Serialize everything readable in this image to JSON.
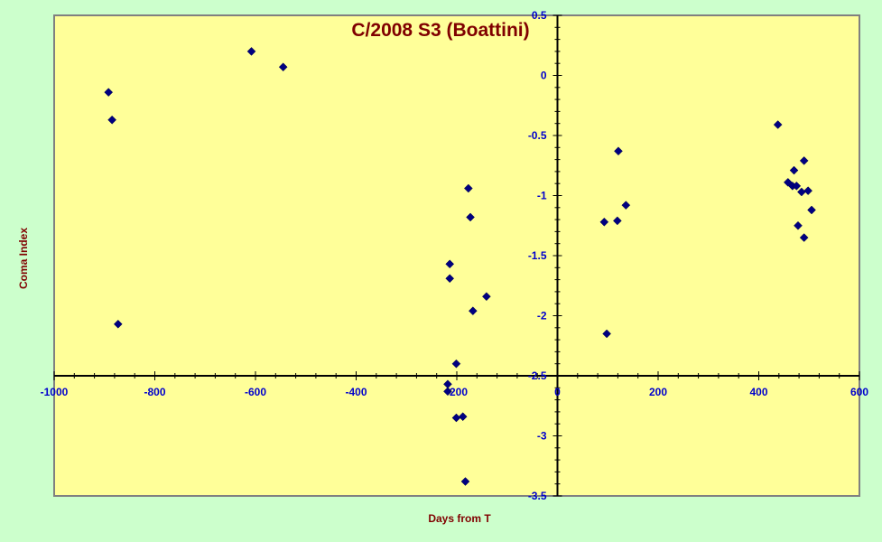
{
  "chart_data": {
    "type": "scatter",
    "title": "C/2008 S3 (Boattini)",
    "xlabel": "Days from T",
    "ylabel": "Coma Index",
    "xlim": [
      -1000,
      600
    ],
    "ylim": [
      -3.5,
      0.5
    ],
    "x_ticks": [
      -1000,
      -800,
      -600,
      -400,
      -200,
      0,
      200,
      400,
      600
    ],
    "y_ticks": [
      0.5,
      0,
      -0.5,
      -1,
      -1.5,
      -2,
      -2.5,
      -3,
      -3.5
    ],
    "x_tick_labels": [
      "-1000",
      "-800",
      "-600",
      "-400",
      "-200",
      "0",
      "200",
      "400",
      "600"
    ],
    "y_tick_labels": [
      "0.5",
      "0",
      "-0.5",
      "-1",
      "-1.5",
      "-2",
      "-2.5",
      "-3",
      "-3.5"
    ],
    "grid": false,
    "legend": "none",
    "colors": {
      "background": "#ccffcc",
      "plot_area": "#ffff99",
      "marker": "#000080",
      "title": "#800000",
      "tick_labels": "#0000cc"
    },
    "series": [
      {
        "values": [
          [
            -892,
            -0.14
          ],
          [
            -885,
            -0.37
          ],
          [
            -873,
            -2.07
          ],
          [
            -608,
            0.2
          ],
          [
            -545,
            0.07
          ],
          [
            -218,
            -2.57
          ],
          [
            -218,
            -2.63
          ],
          [
            -214,
            -1.57
          ],
          [
            -214,
            -1.69
          ],
          [
            -201,
            -2.4
          ],
          [
            -201,
            -2.85
          ],
          [
            -188,
            -2.84
          ],
          [
            -183,
            -3.38
          ],
          [
            -177,
            -0.94
          ],
          [
            -173,
            -1.18
          ],
          [
            -168,
            -1.96
          ],
          [
            -141,
            -1.84
          ],
          [
            93,
            -1.22
          ],
          [
            98,
            -2.15
          ],
          [
            119,
            -1.21
          ],
          [
            121,
            -0.63
          ],
          [
            136,
            -1.08
          ],
          [
            438,
            -0.41
          ],
          [
            458,
            -0.89
          ],
          [
            467,
            -0.92
          ],
          [
            470,
            -0.79
          ],
          [
            475,
            -0.92
          ],
          [
            478,
            -1.25
          ],
          [
            485,
            -0.97
          ],
          [
            490,
            -0.71
          ],
          [
            490,
            -1.35
          ],
          [
            498,
            -0.96
          ],
          [
            505,
            -1.12
          ]
        ]
      }
    ]
  }
}
